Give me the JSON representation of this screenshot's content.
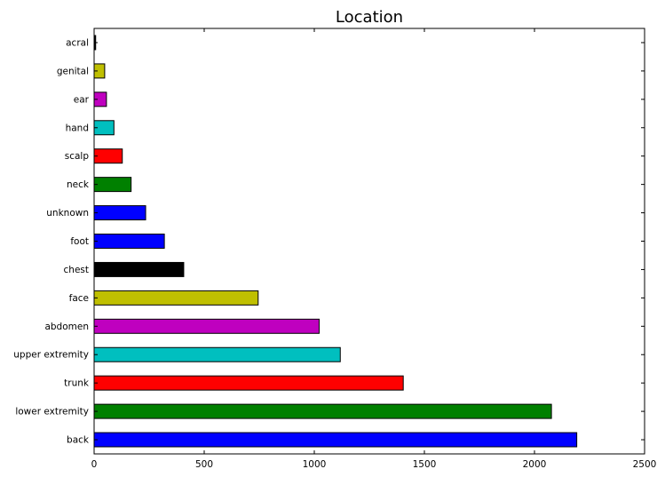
{
  "chart_data": {
    "type": "bar",
    "orientation": "horizontal",
    "title": "Location",
    "xlabel": "",
    "ylabel": "",
    "xlim": [
      0,
      2500
    ],
    "xticks": [
      0,
      500,
      1000,
      1500,
      2000,
      2500
    ],
    "grid": false,
    "categories": [
      "back",
      "lower extremity",
      "trunk",
      "upper extremity",
      "abdomen",
      "face",
      "chest",
      "foot",
      "unknown",
      "neck",
      "scalp",
      "hand",
      "ear",
      "genital",
      "acral"
    ],
    "values": [
      2192,
      2077,
      1404,
      1118,
      1022,
      745,
      407,
      319,
      234,
      168,
      128,
      90,
      56,
      48,
      7
    ],
    "colors": [
      "#0000ff",
      "#008000",
      "#ff0000",
      "#00bfbf",
      "#bf00bf",
      "#bfbf00",
      "#000000",
      "#0000ff",
      "#0000ff",
      "#008000",
      "#ff0000",
      "#00bfbf",
      "#bf00bf",
      "#bfbf00",
      "#000000"
    ]
  }
}
